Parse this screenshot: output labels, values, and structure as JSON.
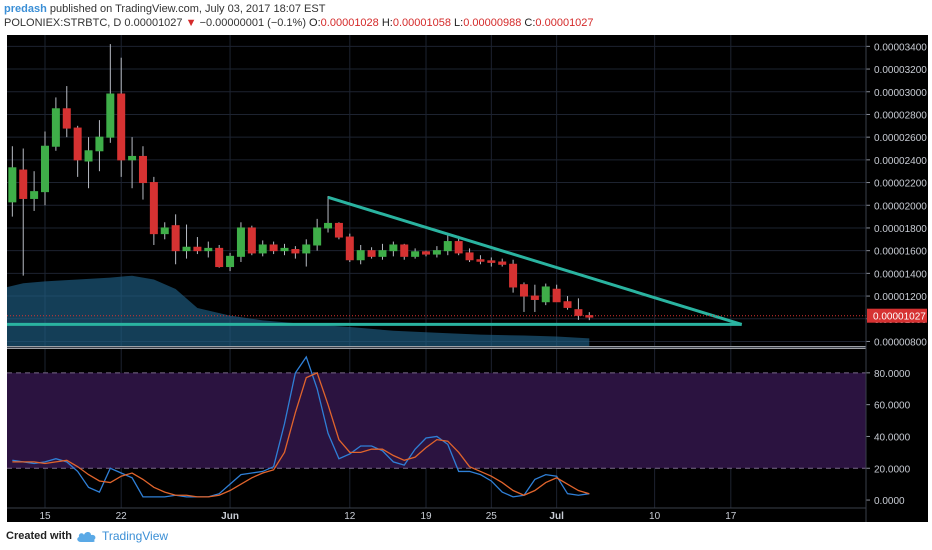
{
  "header": {
    "author": "predash",
    "published": " published on TradingView.com, July 03, 2017 18:07 EST",
    "symbol": "POLONIEX:STRBTC, D",
    "last": "0.00001027",
    "change": "−0.00000001 (−0.1%)",
    "o_label": "O:",
    "o": "0.00001028",
    "h_label": "H:",
    "h": "0.00001058",
    "l_label": "L:",
    "l": "0.00000988",
    "c_label": "C:",
    "c": "0.00001027"
  },
  "footer": {
    "created": "Created with",
    "brand": "TradingView",
    "logo_icon": "tradingview-cloud-icon"
  },
  "colors": {
    "up": "#3fae49",
    "down": "#d63232",
    "trendline": "#2ab3a0",
    "k_line": "#2f7fd6",
    "d_line": "#e0642c",
    "rsi_band": "#2b1340",
    "price_tag": "#d63232"
  },
  "chart_data": [
    {
      "type": "candlestick",
      "price_label": "0.00001027",
      "y_ticks": [
        "0.00003400",
        "0.00003200",
        "0.00003000",
        "0.00002800",
        "0.00002600",
        "0.00002400",
        "0.00002200",
        "0.00002000",
        "0.00001800",
        "0.00001600",
        "0.00001400",
        "0.00001200",
        "0.00001000",
        "0.00000800"
      ],
      "ylim": [
        7.6e-06,
        3.5e-05
      ],
      "x_ticks": [
        "15",
        "22",
        "Jun",
        "12",
        "19",
        "25",
        "Jul",
        "10",
        "17"
      ],
      "x_tick_days": [
        0,
        7,
        17,
        28,
        35,
        41,
        47,
        56,
        63
      ],
      "candles": [
        {
          "d": -3,
          "o": 2.03e-05,
          "h": 2.52e-05,
          "l": 1.9e-05,
          "c": 2.33e-05
        },
        {
          "d": -2,
          "o": 2.31e-05,
          "h": 2.5e-05,
          "l": 1.38e-05,
          "c": 2.06e-05
        },
        {
          "d": -1,
          "o": 2.06e-05,
          "h": 2.3e-05,
          "l": 1.95e-05,
          "c": 2.12e-05
        },
        {
          "d": 0,
          "o": 2.12e-05,
          "h": 2.65e-05,
          "l": 2e-05,
          "c": 2.52e-05
        },
        {
          "d": 1,
          "o": 2.52e-05,
          "h": 2.95e-05,
          "l": 2.48e-05,
          "c": 2.85e-05
        },
        {
          "d": 2,
          "o": 2.85e-05,
          "h": 3.05e-05,
          "l": 2.6e-05,
          "c": 2.68e-05
        },
        {
          "d": 3,
          "o": 2.68e-05,
          "h": 2.7e-05,
          "l": 2.25e-05,
          "c": 2.4e-05
        },
        {
          "d": 4,
          "o": 2.39e-05,
          "h": 2.6e-05,
          "l": 2.15e-05,
          "c": 2.48e-05
        },
        {
          "d": 5,
          "o": 2.48e-05,
          "h": 2.75e-05,
          "l": 2.3e-05,
          "c": 2.6e-05
        },
        {
          "d": 6,
          "o": 2.6e-05,
          "h": 3.42e-05,
          "l": 2.55e-05,
          "c": 2.98e-05
        },
        {
          "d": 7,
          "o": 2.98e-05,
          "h": 3.3e-05,
          "l": 2.25e-05,
          "c": 2.4e-05
        },
        {
          "d": 8,
          "o": 2.4e-05,
          "h": 2.6e-05,
          "l": 2.15e-05,
          "c": 2.43e-05
        },
        {
          "d": 9,
          "o": 2.43e-05,
          "h": 2.52e-05,
          "l": 2.05e-05,
          "c": 2.2e-05
        },
        {
          "d": 10,
          "o": 2.2e-05,
          "h": 2.25e-05,
          "l": 1.65e-05,
          "c": 1.75e-05
        },
        {
          "d": 11,
          "o": 1.75e-05,
          "h": 1.85e-05,
          "l": 1.7e-05,
          "c": 1.8e-05
        },
        {
          "d": 12,
          "o": 1.82e-05,
          "h": 1.92e-05,
          "l": 1.48e-05,
          "c": 1.6e-05
        },
        {
          "d": 13,
          "o": 1.6e-05,
          "h": 1.83e-05,
          "l": 1.53e-05,
          "c": 1.63e-05
        },
        {
          "d": 14,
          "o": 1.63e-05,
          "h": 1.72e-05,
          "l": 1.57e-05,
          "c": 1.6e-05
        },
        {
          "d": 15,
          "o": 1.6e-05,
          "h": 1.68e-05,
          "l": 1.54e-05,
          "c": 1.62e-05
        },
        {
          "d": 16,
          "o": 1.62e-05,
          "h": 1.65e-05,
          "l": 1.45e-05,
          "c": 1.46e-05
        },
        {
          "d": 17,
          "o": 1.46e-05,
          "h": 1.58e-05,
          "l": 1.42e-05,
          "c": 1.55e-05
        },
        {
          "d": 18,
          "o": 1.55e-05,
          "h": 1.85e-05,
          "l": 1.5e-05,
          "c": 1.8e-05
        },
        {
          "d": 19,
          "o": 1.8e-05,
          "h": 1.82e-05,
          "l": 1.56e-05,
          "c": 1.58e-05
        },
        {
          "d": 20,
          "o": 1.58e-05,
          "h": 1.69e-05,
          "l": 1.55e-05,
          "c": 1.65e-05
        },
        {
          "d": 21,
          "o": 1.65e-05,
          "h": 1.68e-05,
          "l": 1.57e-05,
          "c": 1.6e-05
        },
        {
          "d": 22,
          "o": 1.6e-05,
          "h": 1.66e-05,
          "l": 1.56e-05,
          "c": 1.62e-05
        },
        {
          "d": 23,
          "o": 1.61e-05,
          "h": 1.64e-05,
          "l": 1.53e-05,
          "c": 1.58e-05
        },
        {
          "d": 24,
          "o": 1.58e-05,
          "h": 1.7e-05,
          "l": 1.46e-05,
          "c": 1.65e-05
        },
        {
          "d": 25,
          "o": 1.65e-05,
          "h": 1.88e-05,
          "l": 1.6e-05,
          "c": 1.8e-05
        },
        {
          "d": 26,
          "o": 1.8e-05,
          "h": 2.08e-05,
          "l": 1.76e-05,
          "c": 1.84e-05
        },
        {
          "d": 27,
          "o": 1.84e-05,
          "h": 1.85e-05,
          "l": 1.7e-05,
          "c": 1.72e-05
        },
        {
          "d": 28,
          "o": 1.72e-05,
          "h": 1.75e-05,
          "l": 1.5e-05,
          "c": 1.52e-05
        },
        {
          "d": 29,
          "o": 1.52e-05,
          "h": 1.65e-05,
          "l": 1.48e-05,
          "c": 1.6e-05
        },
        {
          "d": 30,
          "o": 1.6e-05,
          "h": 1.63e-05,
          "l": 1.53e-05,
          "c": 1.55e-05
        },
        {
          "d": 31,
          "o": 1.55e-05,
          "h": 1.66e-05,
          "l": 1.52e-05,
          "c": 1.6e-05
        },
        {
          "d": 32,
          "o": 1.6e-05,
          "h": 1.68e-05,
          "l": 1.55e-05,
          "c": 1.65e-05
        },
        {
          "d": 33,
          "o": 1.65e-05,
          "h": 1.66e-05,
          "l": 1.52e-05,
          "c": 1.55e-05
        },
        {
          "d": 34,
          "o": 1.55e-05,
          "h": 1.62e-05,
          "l": 1.53e-05,
          "c": 1.59e-05
        },
        {
          "d": 35,
          "o": 1.59e-05,
          "h": 1.6e-05,
          "l": 1.55e-05,
          "c": 1.57e-05
        },
        {
          "d": 36,
          "o": 1.57e-05,
          "h": 1.64e-05,
          "l": 1.54e-05,
          "c": 1.6e-05
        },
        {
          "d": 37,
          "o": 1.6e-05,
          "h": 1.75e-05,
          "l": 1.56e-05,
          "c": 1.68e-05
        },
        {
          "d": 38,
          "o": 1.68e-05,
          "h": 1.73e-05,
          "l": 1.56e-05,
          "c": 1.58e-05
        },
        {
          "d": 39,
          "o": 1.58e-05,
          "h": 1.62e-05,
          "l": 1.5e-05,
          "c": 1.52e-05
        },
        {
          "d": 40,
          "o": 1.52e-05,
          "h": 1.56e-05,
          "l": 1.48e-05,
          "c": 1.51e-05
        },
        {
          "d": 41,
          "o": 1.51e-05,
          "h": 1.54e-05,
          "l": 1.46e-05,
          "c": 1.5e-05
        },
        {
          "d": 42,
          "o": 1.5e-05,
          "h": 1.53e-05,
          "l": 1.46e-05,
          "c": 1.48e-05
        },
        {
          "d": 43,
          "o": 1.48e-05,
          "h": 1.52e-05,
          "l": 1.23e-05,
          "c": 1.28e-05
        },
        {
          "d": 44,
          "o": 1.3e-05,
          "h": 1.32e-05,
          "l": 1.06e-05,
          "c": 1.2e-05
        },
        {
          "d": 45,
          "o": 1.2e-05,
          "h": 1.3e-05,
          "l": 1.06e-05,
          "c": 1.17e-05
        },
        {
          "d": 46,
          "o": 1.15e-05,
          "h": 1.31e-05,
          "l": 1.12e-05,
          "c": 1.28e-05
        },
        {
          "d": 47,
          "o": 1.26e-05,
          "h": 1.3e-05,
          "l": 1.15e-05,
          "c": 1.15e-05
        },
        {
          "d": 48,
          "o": 1.15e-05,
          "h": 1.2e-05,
          "l": 1.08e-05,
          "c": 1.1e-05
        },
        {
          "d": 49,
          "o": 1.08e-05,
          "h": 1.18e-05,
          "l": 9.9e-06,
          "c": 1.03e-05
        },
        {
          "d": 50,
          "o": 1.028e-05,
          "h": 1.058e-05,
          "l": 9.88e-06,
          "c": 1.027e-05
        }
      ],
      "volume": [
        {
          "d": -3,
          "v": 0.62
        },
        {
          "d": -2,
          "v": 0.66
        },
        {
          "d": 0,
          "v": 0.68
        },
        {
          "d": 3,
          "v": 0.7
        },
        {
          "d": 6,
          "v": 0.72
        },
        {
          "d": 8,
          "v": 0.74
        },
        {
          "d": 10,
          "v": 0.7
        },
        {
          "d": 12,
          "v": 0.6
        },
        {
          "d": 14,
          "v": 0.4
        },
        {
          "d": 17,
          "v": 0.32
        },
        {
          "d": 20,
          "v": 0.27
        },
        {
          "d": 24,
          "v": 0.23
        },
        {
          "d": 28,
          "v": 0.2
        },
        {
          "d": 32,
          "v": 0.16
        },
        {
          "d": 36,
          "v": 0.14
        },
        {
          "d": 40,
          "v": 0.12
        },
        {
          "d": 44,
          "v": 0.11
        },
        {
          "d": 47,
          "v": 0.1
        },
        {
          "d": 50,
          "v": 0.08
        }
      ],
      "trendline_upper": [
        {
          "d": 26,
          "p": 2.07e-05
        },
        {
          "d": 64,
          "p": 9.5e-06
        }
      ],
      "trendline_lower": [
        {
          "d": -3,
          "p": 9.5e-06
        },
        {
          "d": 64,
          "p": 9.5e-06
        }
      ],
      "last_price": 1.027e-05
    },
    {
      "type": "line",
      "indicator": "stochastic-rsi",
      "y_ticks": [
        "80.0000",
        "60.0000",
        "40.0000",
        "20.0000",
        "0.0000"
      ],
      "y_tick_values": [
        80,
        60,
        40,
        20,
        0
      ],
      "ylim": [
        -5,
        95
      ],
      "band": [
        20,
        80
      ],
      "series": [
        {
          "key": "k",
          "points": [
            [
              -3,
              25
            ],
            [
              -1,
              23
            ],
            [
              0,
              24
            ],
            [
              1,
              26
            ],
            [
              2,
              24
            ],
            [
              3,
              18
            ],
            [
              4,
              8
            ],
            [
              5,
              5
            ],
            [
              6,
              20
            ],
            [
              7,
              17
            ],
            [
              8,
              14
            ],
            [
              9,
              2
            ],
            [
              10,
              2
            ],
            [
              11,
              2
            ],
            [
              12,
              3
            ],
            [
              13,
              2
            ],
            [
              14,
              2
            ],
            [
              15,
              2
            ],
            [
              16,
              4
            ],
            [
              17,
              10
            ],
            [
              18,
              16
            ],
            [
              19,
              17
            ],
            [
              20,
              18
            ],
            [
              21,
              21
            ],
            [
              22,
              48
            ],
            [
              23,
              80
            ],
            [
              24,
              90
            ],
            [
              25,
              70
            ],
            [
              26,
              42
            ],
            [
              27,
              26
            ],
            [
              28,
              29
            ],
            [
              29,
              34
            ],
            [
              30,
              34
            ],
            [
              31,
              31
            ],
            [
              32,
              24
            ],
            [
              33,
              22
            ],
            [
              34,
              32
            ],
            [
              35,
              39
            ],
            [
              36,
              40
            ],
            [
              37,
              35
            ],
            [
              38,
              18
            ],
            [
              39,
              18
            ],
            [
              40,
              16
            ],
            [
              41,
              12
            ],
            [
              42,
              5
            ],
            [
              43,
              2
            ],
            [
              44,
              3
            ],
            [
              45,
              13
            ],
            [
              46,
              16
            ],
            [
              47,
              15
            ],
            [
              48,
              4
            ],
            [
              49,
              3
            ],
            [
              50,
              4
            ]
          ]
        },
        {
          "key": "d",
          "points": [
            [
              -3,
              24
            ],
            [
              -1,
              24
            ],
            [
              0,
              23
            ],
            [
              1,
              24
            ],
            [
              2,
              25
            ],
            [
              3,
              21
            ],
            [
              4,
              16
            ],
            [
              5,
              12
            ],
            [
              6,
              11
            ],
            [
              7,
              15
            ],
            [
              8,
              17
            ],
            [
              9,
              13
            ],
            [
              10,
              8
            ],
            [
              11,
              5
            ],
            [
              12,
              3
            ],
            [
              13,
              3
            ],
            [
              14,
              2
            ],
            [
              15,
              2
            ],
            [
              16,
              3
            ],
            [
              17,
              6
            ],
            [
              18,
              10
            ],
            [
              19,
              14
            ],
            [
              20,
              17
            ],
            [
              21,
              19
            ],
            [
              22,
              30
            ],
            [
              23,
              55
            ],
            [
              24,
              77
            ],
            [
              25,
              80
            ],
            [
              26,
              60
            ],
            [
              27,
              38
            ],
            [
              28,
              30
            ],
            [
              29,
              30
            ],
            [
              30,
              32
            ],
            [
              31,
              32
            ],
            [
              32,
              28
            ],
            [
              33,
              25
            ],
            [
              34,
              27
            ],
            [
              35,
              33
            ],
            [
              36,
              38
            ],
            [
              37,
              37
            ],
            [
              38,
              30
            ],
            [
              39,
              21
            ],
            [
              40,
              18
            ],
            [
              41,
              15
            ],
            [
              42,
              11
            ],
            [
              43,
              6
            ],
            [
              44,
              3
            ],
            [
              45,
              6
            ],
            [
              46,
              11
            ],
            [
              47,
              14
            ],
            [
              48,
              10
            ],
            [
              49,
              6
            ],
            [
              50,
              4
            ]
          ]
        }
      ]
    }
  ]
}
